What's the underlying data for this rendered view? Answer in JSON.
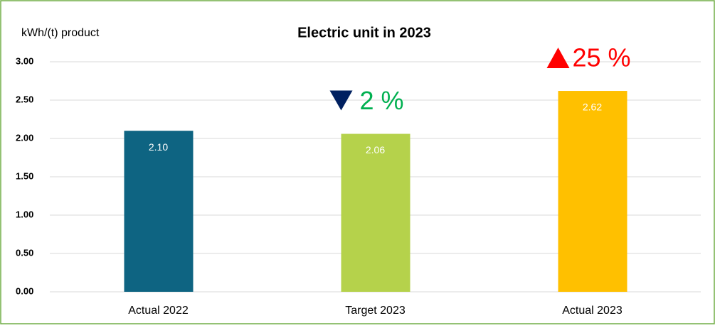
{
  "chart_data": {
    "type": "bar",
    "title": "Electric unit in 2023",
    "y_label": "kWh/(t) product",
    "categories": [
      "Actual 2022",
      "Target 2023",
      "Actual 2023"
    ],
    "values": [
      2.1,
      2.06,
      2.62
    ],
    "value_labels": [
      "2.10",
      "2.06",
      "2.62"
    ],
    "colors": [
      "#0e6482",
      "#b5d24b",
      "#ffc000"
    ],
    "ylim": [
      0,
      3
    ],
    "yticks": [
      {
        "value": 0,
        "label": "0.00"
      },
      {
        "value": 0.5,
        "label": "0.50"
      },
      {
        "value": 1,
        "label": "1.00"
      },
      {
        "value": 1.5,
        "label": "1.50"
      },
      {
        "value": 2,
        "label": "2.00"
      },
      {
        "value": 2.5,
        "label": "2.50"
      },
      {
        "value": 3,
        "label": "3.00"
      }
    ],
    "grid": true,
    "annotations": [
      {
        "text": "2 %",
        "color": "#00b050",
        "marker_color": "#002060",
        "direction": "down"
      },
      {
        "text": "25 %",
        "color": "#ff0000",
        "marker_color": "#ff0000",
        "direction": "up"
      }
    ]
  }
}
